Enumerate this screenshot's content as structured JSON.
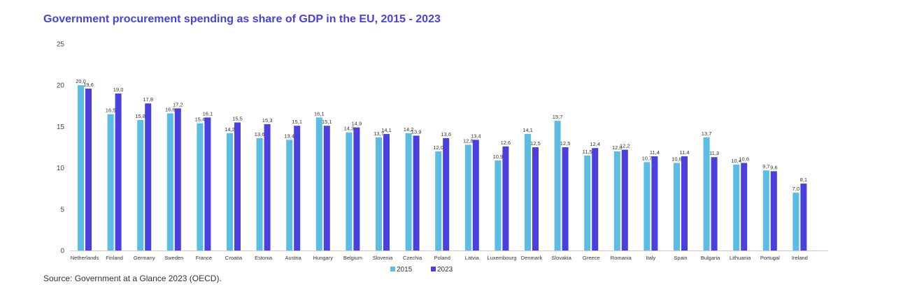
{
  "title": "Government procurement spending as share of GDP in the EU, 2015 - 2023",
  "source": "Source: Government at a Glance 2023 (OECD).",
  "colors": {
    "s2015": "#5bbde4",
    "s2023": "#4a40e0",
    "title": "#4a40e0"
  },
  "chart_data": {
    "type": "bar",
    "categories": [
      "Netherlands",
      "Finland",
      "Germany",
      "Sweden",
      "France",
      "Croatia",
      "Estonia",
      "Austria",
      "Hungary",
      "Belgium",
      "Slovenia",
      "Czechia",
      "Poland",
      "Latvia",
      "Luxembourg",
      "Denmark",
      "Slovakia",
      "Greece",
      "Romania",
      "Italy",
      "Spain",
      "Bulgaria",
      "Lithuania",
      "Portugal",
      "Ireland"
    ],
    "series": [
      {
        "name": "2015",
        "values": [
          20.0,
          16.5,
          15.8,
          16.6,
          15.4,
          14.2,
          13.6,
          13.4,
          16.1,
          14.3,
          13.7,
          14.2,
          12.0,
          12.8,
          10.9,
          14.1,
          15.7,
          11.5,
          12.0,
          10.7,
          10.6,
          13.7,
          10.4,
          9.7,
          7.0
        ],
        "labels": [
          "20,0",
          "16,5",
          "15,8",
          "16,6",
          "15,4",
          "14,2",
          "13,6",
          "13,4",
          "16,1",
          "14,3",
          "13,7",
          "14,2",
          "12,0",
          "12,8",
          "10,9",
          "14,1",
          "15,7",
          "11,5",
          "12,0",
          "10,7",
          "10,6",
          "13,7",
          "10,4",
          "9,7",
          "7,0"
        ]
      },
      {
        "name": "2023",
        "values": [
          19.6,
          19.0,
          17.8,
          17.2,
          16.1,
          15.5,
          15.3,
          15.1,
          15.1,
          14.9,
          14.1,
          13.9,
          13.6,
          13.4,
          12.6,
          12.5,
          12.5,
          12.4,
          12.2,
          11.4,
          11.4,
          11.3,
          10.6,
          9.6,
          8.1
        ],
        "labels": [
          "19,6",
          "19,0",
          "17,8",
          "17,2",
          "16,1",
          "15,5",
          "15,3",
          "15,1",
          "15,1",
          "14,9",
          "14,1",
          "13,9",
          "13,6",
          "13,4",
          "12,6",
          "12,5",
          "12,5",
          "12,4",
          "12,2",
          "11,4",
          "11,4",
          "11,3",
          "10,6",
          "9,6",
          "8,1"
        ]
      }
    ],
    "ylim": [
      0,
      25
    ],
    "yticks": [
      "0",
      "5",
      "10",
      "15",
      "20",
      "25"
    ],
    "grid": false,
    "legend": "bottom-center"
  }
}
